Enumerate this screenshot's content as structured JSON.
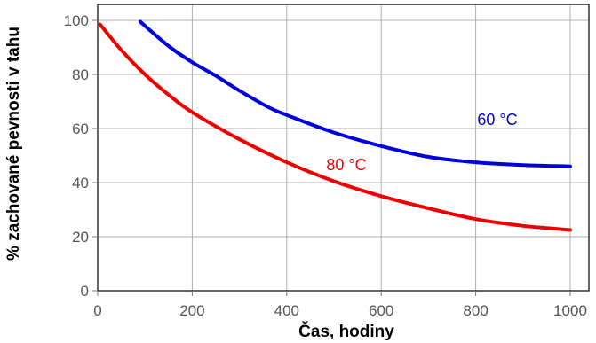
{
  "chart_data": {
    "type": "line",
    "title": "",
    "xlabel": "Čas, hodiny",
    "ylabel": "% zachované pevnosti v tahu",
    "xlim": [
      0,
      1000
    ],
    "ylim": [
      0,
      100
    ],
    "xticks": [
      0,
      200,
      400,
      600,
      800,
      1000
    ],
    "yticks": [
      0,
      20,
      40,
      60,
      80,
      100
    ],
    "grid": true,
    "legend": "none",
    "series": [
      {
        "name": "60 °C",
        "color": "#0000dd",
        "x": [
          90,
          150,
          200,
          250,
          300,
          360,
          400,
          500,
          600,
          700,
          800,
          900,
          1000
        ],
        "y": [
          99.5,
          90.5,
          84.5,
          79.5,
          74,
          68,
          65,
          58.5,
          53.5,
          49.5,
          47.5,
          46.5,
          46
        ]
      },
      {
        "name": "80 °C",
        "color": "#ee0000",
        "x": [
          5,
          50,
          100,
          150,
          200,
          300,
          400,
          500,
          600,
          700,
          800,
          900,
          1000
        ],
        "y": [
          98.5,
          89,
          80,
          72.5,
          66,
          56,
          47.5,
          40.5,
          35,
          30.5,
          26.5,
          24,
          22.5
        ]
      }
    ]
  }
}
